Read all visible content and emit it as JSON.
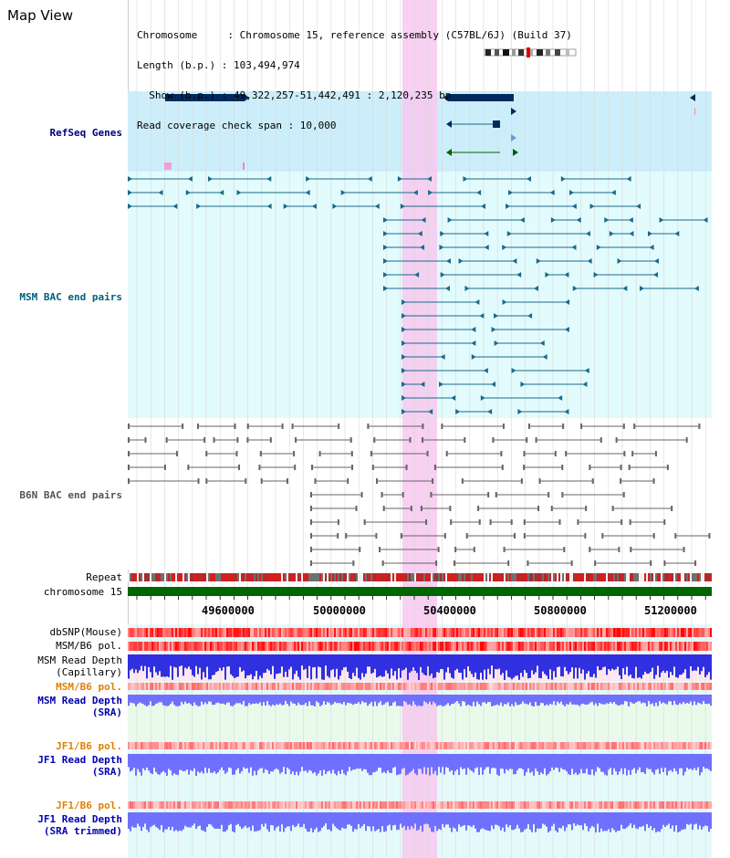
{
  "view": {
    "title": "Map View",
    "info_lines": [
      "Chromosome     : Chromosome 15, reference assembly (C57BL/6J) (Build 37)",
      "Length (b.p.) : 103,494,974",
      "  Show (b.p.) : 49,322,257-51,442,491 : 2,120,235 bp",
      "Read coverage check span : 10,000"
    ]
  },
  "tracks": {
    "refseq": "RefSeq Genes",
    "msm_bac": "MSM BAC end pairs",
    "b6n_bac": "B6N BAC end pairs",
    "repeat": "Repeat",
    "chromosome": "chromosome 15",
    "dbsnp": "dbSNP(Mouse)",
    "msm_b6_pol_1": "MSM/B6 pol.",
    "msm_depth_cap": "MSM Read Depth\n(Capillary)",
    "msm_b6_pol_2": "MSM/B6 pol.",
    "msm_depth_sra": "MSM Read Depth\n(SRA)",
    "jf1_b6_pol_1": "JF1/B6 pol.",
    "jf1_depth_sra": "JF1 Read Depth\n(SRA)",
    "jf1_b6_pol_2": "JF1/B6 pol.",
    "jf1_depth_trim": "JF1 Read Depth\n(SRA trimmed)"
  },
  "axis": {
    "ticks": [
      "49600000",
      "50000000",
      "50400000",
      "50800000",
      "51200000"
    ]
  },
  "colors": {
    "highlight": "#f7c8ef",
    "refseq_bg": "#cceefa",
    "msm_bg": "#e2fbfd",
    "b6n_bg": "#ffffff",
    "gene_dark": "#002a5c",
    "msm_feature": "#1a6a8c",
    "b6n_feature": "#666666",
    "chromosome_bar": "#006600",
    "snp_red": "#ff2020",
    "depth_blue": "#3030e0",
    "depth_lightblue": "#7070ff",
    "pol_orange": "#e08000"
  }
}
